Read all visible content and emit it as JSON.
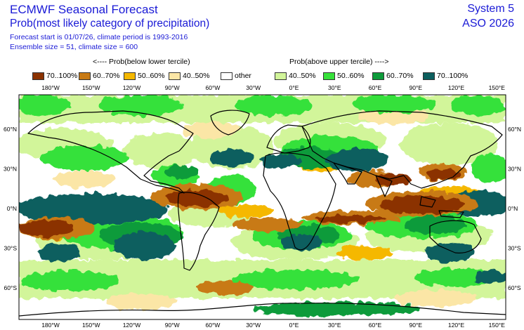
{
  "header": {
    "title": "ECMWF Seasonal Forecast",
    "subtitle": "Prob(most likely category of precipitation)",
    "meta_line1": "Forecast start is 01/07/26, climate period is 1993-2016",
    "meta_line2": "Ensemble size = 51, climate size = 600",
    "system": "System 5",
    "period": "ASO 2026"
  },
  "legend": {
    "below_label": "<---- Prob(below lower tercile)",
    "above_label": "Prob(above upper tercile) ---->",
    "items": [
      {
        "label": "70..100%",
        "color": "#8b3200"
      },
      {
        "label": "60..70%",
        "color": "#c87a14"
      },
      {
        "label": "50..60%",
        "color": "#f5b800"
      },
      {
        "label": "40..50%",
        "color": "#fbe6a6"
      },
      {
        "label": "other",
        "color": "#ffffff"
      },
      {
        "label": "40..50%",
        "color": "#d2f59a"
      },
      {
        "label": "50..60%",
        "color": "#36e13a"
      },
      {
        "label": "60..70%",
        "color": "#0d9b3a"
      },
      {
        "label": "70..100%",
        "color": "#0c5f5e"
      }
    ]
  },
  "map": {
    "lon_ticks": [
      "180°W",
      "150°W",
      "120°W",
      "90°W",
      "60°W",
      "30°W",
      "0°E",
      "30°E",
      "60°E",
      "90°E",
      "120°E",
      "150°E"
    ],
    "lat_ticks": [
      "60°N",
      "30°N",
      "0°N",
      "30°S",
      "60°S"
    ]
  }
}
